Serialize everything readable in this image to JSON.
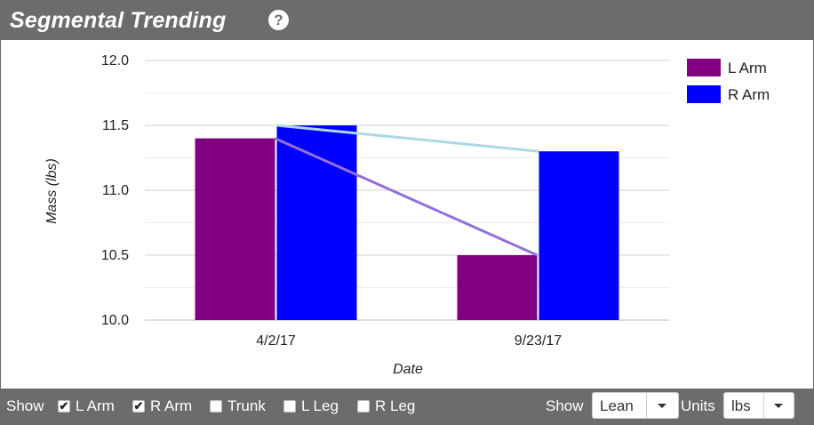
{
  "header": {
    "title": "Segmental Trending",
    "help_icon": "question-circle-icon"
  },
  "chart_data": {
    "type": "bar",
    "categories": [
      "4/2/17",
      "9/23/17"
    ],
    "series": [
      {
        "name": "L Arm",
        "values": [
          11.4,
          10.5
        ],
        "color": "#800080",
        "line_color": "#9370DB"
      },
      {
        "name": "R Arm",
        "values": [
          11.5,
          11.3
        ],
        "color": "#0000FF",
        "line_color": "#ADD8E6"
      }
    ],
    "xlabel": "Date",
    "ylabel": "Mass (lbs)",
    "ylim": [
      10.0,
      12.0
    ],
    "yticks": [
      "12.0",
      "11.5",
      "11.0",
      "10.5",
      "10.0"
    ],
    "grid": true,
    "legend": "top-right",
    "trend_lines": true
  },
  "footer": {
    "show_label": "Show",
    "checkboxes": [
      {
        "label": "L Arm",
        "checked": true
      },
      {
        "label": "R Arm",
        "checked": true
      },
      {
        "label": "Trunk",
        "checked": false
      },
      {
        "label": "L Leg",
        "checked": false
      },
      {
        "label": "R Leg",
        "checked": false
      }
    ],
    "show2_label": "Show",
    "show_value": "Lean",
    "units_label": "Units",
    "units_value": "lbs",
    "check_mark": "✔"
  }
}
